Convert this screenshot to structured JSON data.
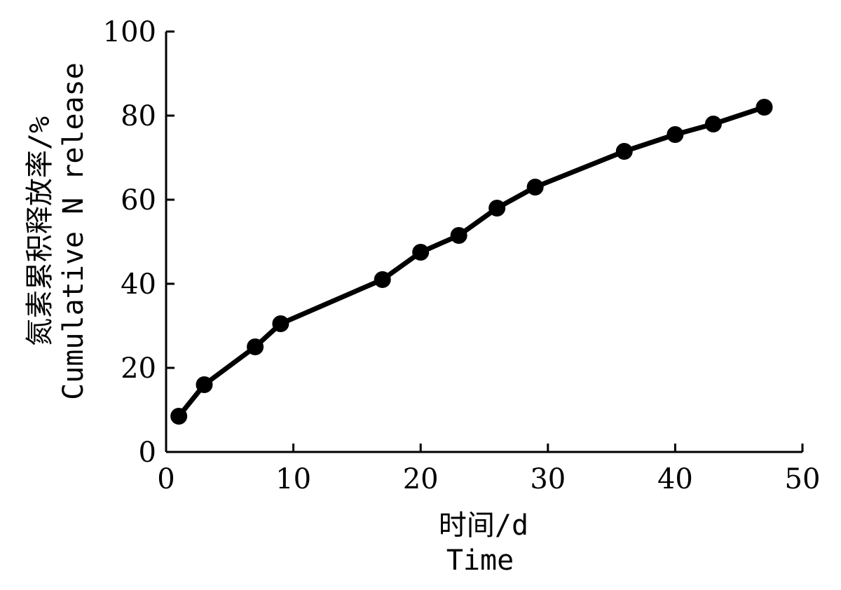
{
  "chart_data": {
    "type": "line",
    "title": "",
    "xlabel_cn": "时间/d",
    "xlabel_en": "Time",
    "ylabel_cn": "氮素累积释放率/%",
    "ylabel_en": "Cumulative N release",
    "xlim": [
      0,
      50
    ],
    "ylim": [
      0,
      100
    ],
    "xticks": [
      0,
      10,
      20,
      30,
      40,
      50
    ],
    "yticks": [
      0,
      20,
      40,
      60,
      80,
      100
    ],
    "xtick_labels": [
      "0",
      "10",
      "20",
      "30",
      "40",
      "50"
    ],
    "ytick_labels": [
      "0",
      "20",
      "40",
      "60",
      "80",
      "100"
    ],
    "grid": false,
    "series": [
      {
        "x": [
          1,
          3,
          7,
          9,
          17,
          20,
          23,
          26,
          29,
          36,
          40,
          43,
          47
        ],
        "y": [
          8.5,
          16,
          25,
          30.5,
          41,
          47.5,
          51.5,
          58,
          63,
          71.5,
          75.5,
          78,
          82
        ],
        "color": "#000000",
        "marker": "circle"
      }
    ]
  }
}
